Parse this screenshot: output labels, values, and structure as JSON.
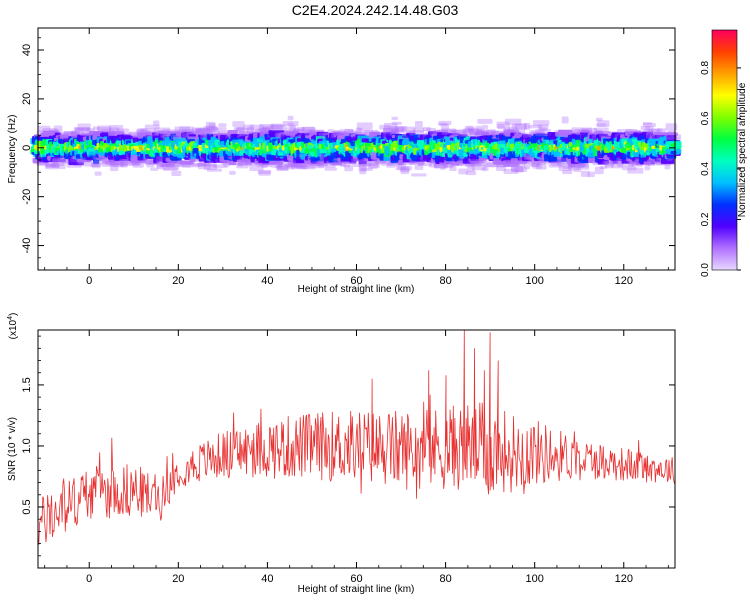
{
  "title": "C2E4.2024.242.14.48.G03",
  "chart_data": [
    {
      "type": "heatmap",
      "title": "C2E4.2024.242.14.48.G03",
      "xlabel": "Height of straight line (km)",
      "ylabel": "Frequency (Hz)",
      "xlim": [
        -11.5,
        131.5
      ],
      "ylim": [
        -50,
        49
      ],
      "xticks": [
        0,
        20,
        40,
        60,
        80,
        100,
        120
      ],
      "yticks": [
        40,
        20,
        0,
        -20,
        -40
      ],
      "xtick_labels": [
        "0",
        "20",
        "40",
        "60",
        "80",
        "100",
        "120"
      ],
      "ytick_labels": [
        "40",
        "20",
        "0",
        "-20",
        "-40"
      ],
      "colorbar": {
        "label": "Normalized spectral amplitude",
        "range": [
          0.0,
          0.95
        ],
        "ticks": [
          0.0,
          0.2,
          0.4,
          0.6,
          0.8
        ],
        "tick_labels": [
          "0.0",
          "0.2",
          "0.4",
          "0.6",
          "0.8"
        ],
        "colors": [
          "#e8d8ff",
          "#b070ff",
          "#5000ff",
          "#0030ff",
          "#00c0ff",
          "#00ffc0",
          "#00ff40",
          "#80ff00",
          "#ffff00",
          "#ffa000",
          "#ff4000",
          "#ff0060"
        ]
      },
      "band": {
        "center_hz": 0,
        "core_halfwidth_hz": 2,
        "spread_hz": 7,
        "max_outer_hz": 14
      },
      "grid": false
    },
    {
      "type": "line",
      "xlabel": "Height of straight line (km)",
      "ylabel": "SNR (10 * v/v)",
      "yscale_label": "(x10",
      "yscale_exp": "4",
      "xlim": [
        -11.5,
        131.5
      ],
      "ylim": [
        0.0,
        1.95
      ],
      "xticks": [
        0,
        20,
        40,
        60,
        80,
        100,
        120
      ],
      "yticks": [
        0.5,
        1.0,
        1.5
      ],
      "xtick_labels": [
        "0",
        "20",
        "40",
        "60",
        "80",
        "100",
        "120"
      ],
      "ytick_labels": [
        "0.5",
        "1.0",
        "1.5"
      ],
      "color": "#e83030",
      "trend_x": [
        -11.5,
        0,
        10,
        16,
        20,
        30,
        40,
        50,
        60,
        70,
        80,
        85,
        90,
        95,
        100,
        110,
        120,
        131.5
      ],
      "trend_y": [
        0.35,
        0.62,
        0.64,
        0.56,
        0.8,
        0.93,
        0.98,
        1.0,
        1.0,
        0.97,
        0.98,
        1.0,
        0.97,
        0.95,
        0.95,
        0.9,
        0.85,
        0.8
      ],
      "noise_x": [
        -11.5,
        10,
        20,
        40,
        60,
        80,
        90,
        100,
        110,
        131.5
      ],
      "noise_amplitude": [
        0.16,
        0.16,
        0.1,
        0.18,
        0.22,
        0.25,
        0.27,
        0.2,
        0.12,
        0.08
      ],
      "peaks": [
        [
          84.2,
          1.95
        ],
        [
          86.5,
          1.8
        ],
        [
          88.7,
          1.62
        ],
        [
          90.0,
          1.93
        ],
        [
          91.8,
          1.7
        ],
        [
          80.1,
          1.58
        ],
        [
          63.5,
          1.55
        ],
        [
          76.2,
          1.62
        ]
      ],
      "grid": false
    }
  ]
}
